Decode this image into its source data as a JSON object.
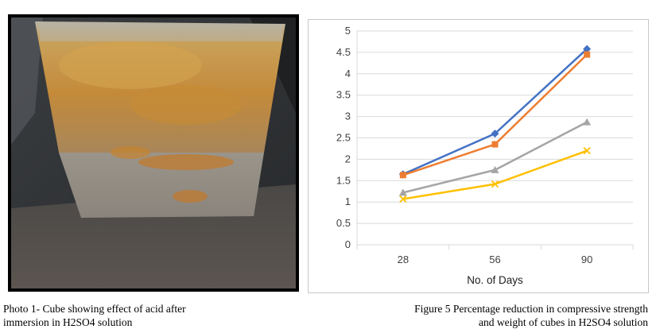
{
  "photo": {
    "caption_line1": "Photo 1- Cube showing effect of acid after",
    "caption_line2": "immersion in H2SO4 solution"
  },
  "figure": {
    "caption_line1": "Figure 5 Percentage reduction in compressive strength",
    "caption_line2": "and weight of cubes in H2SO4 solution"
  },
  "chart_data": {
    "type": "line",
    "title": "",
    "xlabel": "No. of Days",
    "ylabel": "",
    "categories": [
      "28",
      "56",
      "90"
    ],
    "ylim": [
      0,
      5
    ],
    "yticks": [
      "0",
      "0.5",
      "1",
      "1.5",
      "2",
      "2.5",
      "3",
      "3.5",
      "4",
      "4.5",
      "5"
    ],
    "grid": true,
    "legend": "none",
    "series": [
      {
        "color": "#4472C4",
        "marker": "diamond",
        "values": [
          1.65,
          2.6,
          4.58
        ]
      },
      {
        "color": "#ED7D31",
        "marker": "square",
        "values": [
          1.63,
          2.35,
          4.45
        ]
      },
      {
        "color": "#A5A5A5",
        "marker": "triangle",
        "values": [
          1.22,
          1.75,
          2.87
        ]
      },
      {
        "color": "#FFC000",
        "marker": "x",
        "values": [
          1.07,
          1.42,
          2.2
        ]
      }
    ]
  }
}
